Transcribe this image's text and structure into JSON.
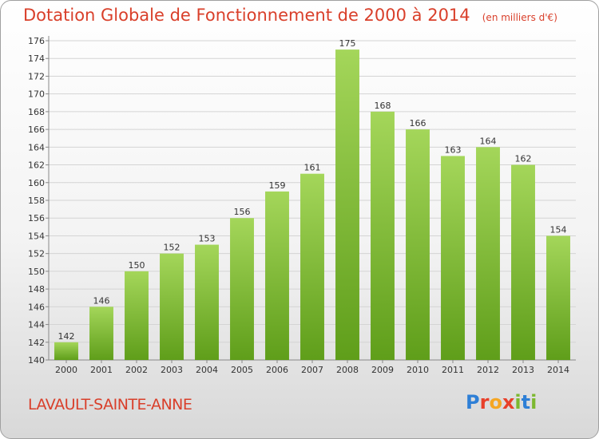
{
  "header": {
    "title": "Dotation Globale de Fonctionnement de 2000 à 2014",
    "unit": "(en milliers d'€)"
  },
  "footer": {
    "commune": "LAVAULT-SAINTE-ANNE",
    "logo_text": "Proxiti",
    "logo_colors": [
      "#2e7fd6",
      "#e8402a",
      "#f5a623",
      "#e8402a",
      "#7cb82f",
      "#2e7fd6",
      "#7cb82f"
    ]
  },
  "chart_data": {
    "type": "bar",
    "categories": [
      "2000",
      "2001",
      "2002",
      "2003",
      "2004",
      "2005",
      "2006",
      "2007",
      "2008",
      "2009",
      "2010",
      "2011",
      "2012",
      "2013",
      "2014"
    ],
    "values": [
      142,
      146,
      150,
      152,
      153,
      156,
      159,
      161,
      175,
      168,
      166,
      163,
      164,
      162,
      154
    ],
    "ylim": [
      140,
      176
    ],
    "yticks": [
      140,
      142,
      144,
      146,
      148,
      150,
      152,
      154,
      156,
      158,
      160,
      162,
      164,
      166,
      168,
      170,
      172,
      174,
      176
    ],
    "grid": true,
    "bar_color_top": "#a4d65a",
    "bar_color_bottom": "#5f9e1a"
  }
}
